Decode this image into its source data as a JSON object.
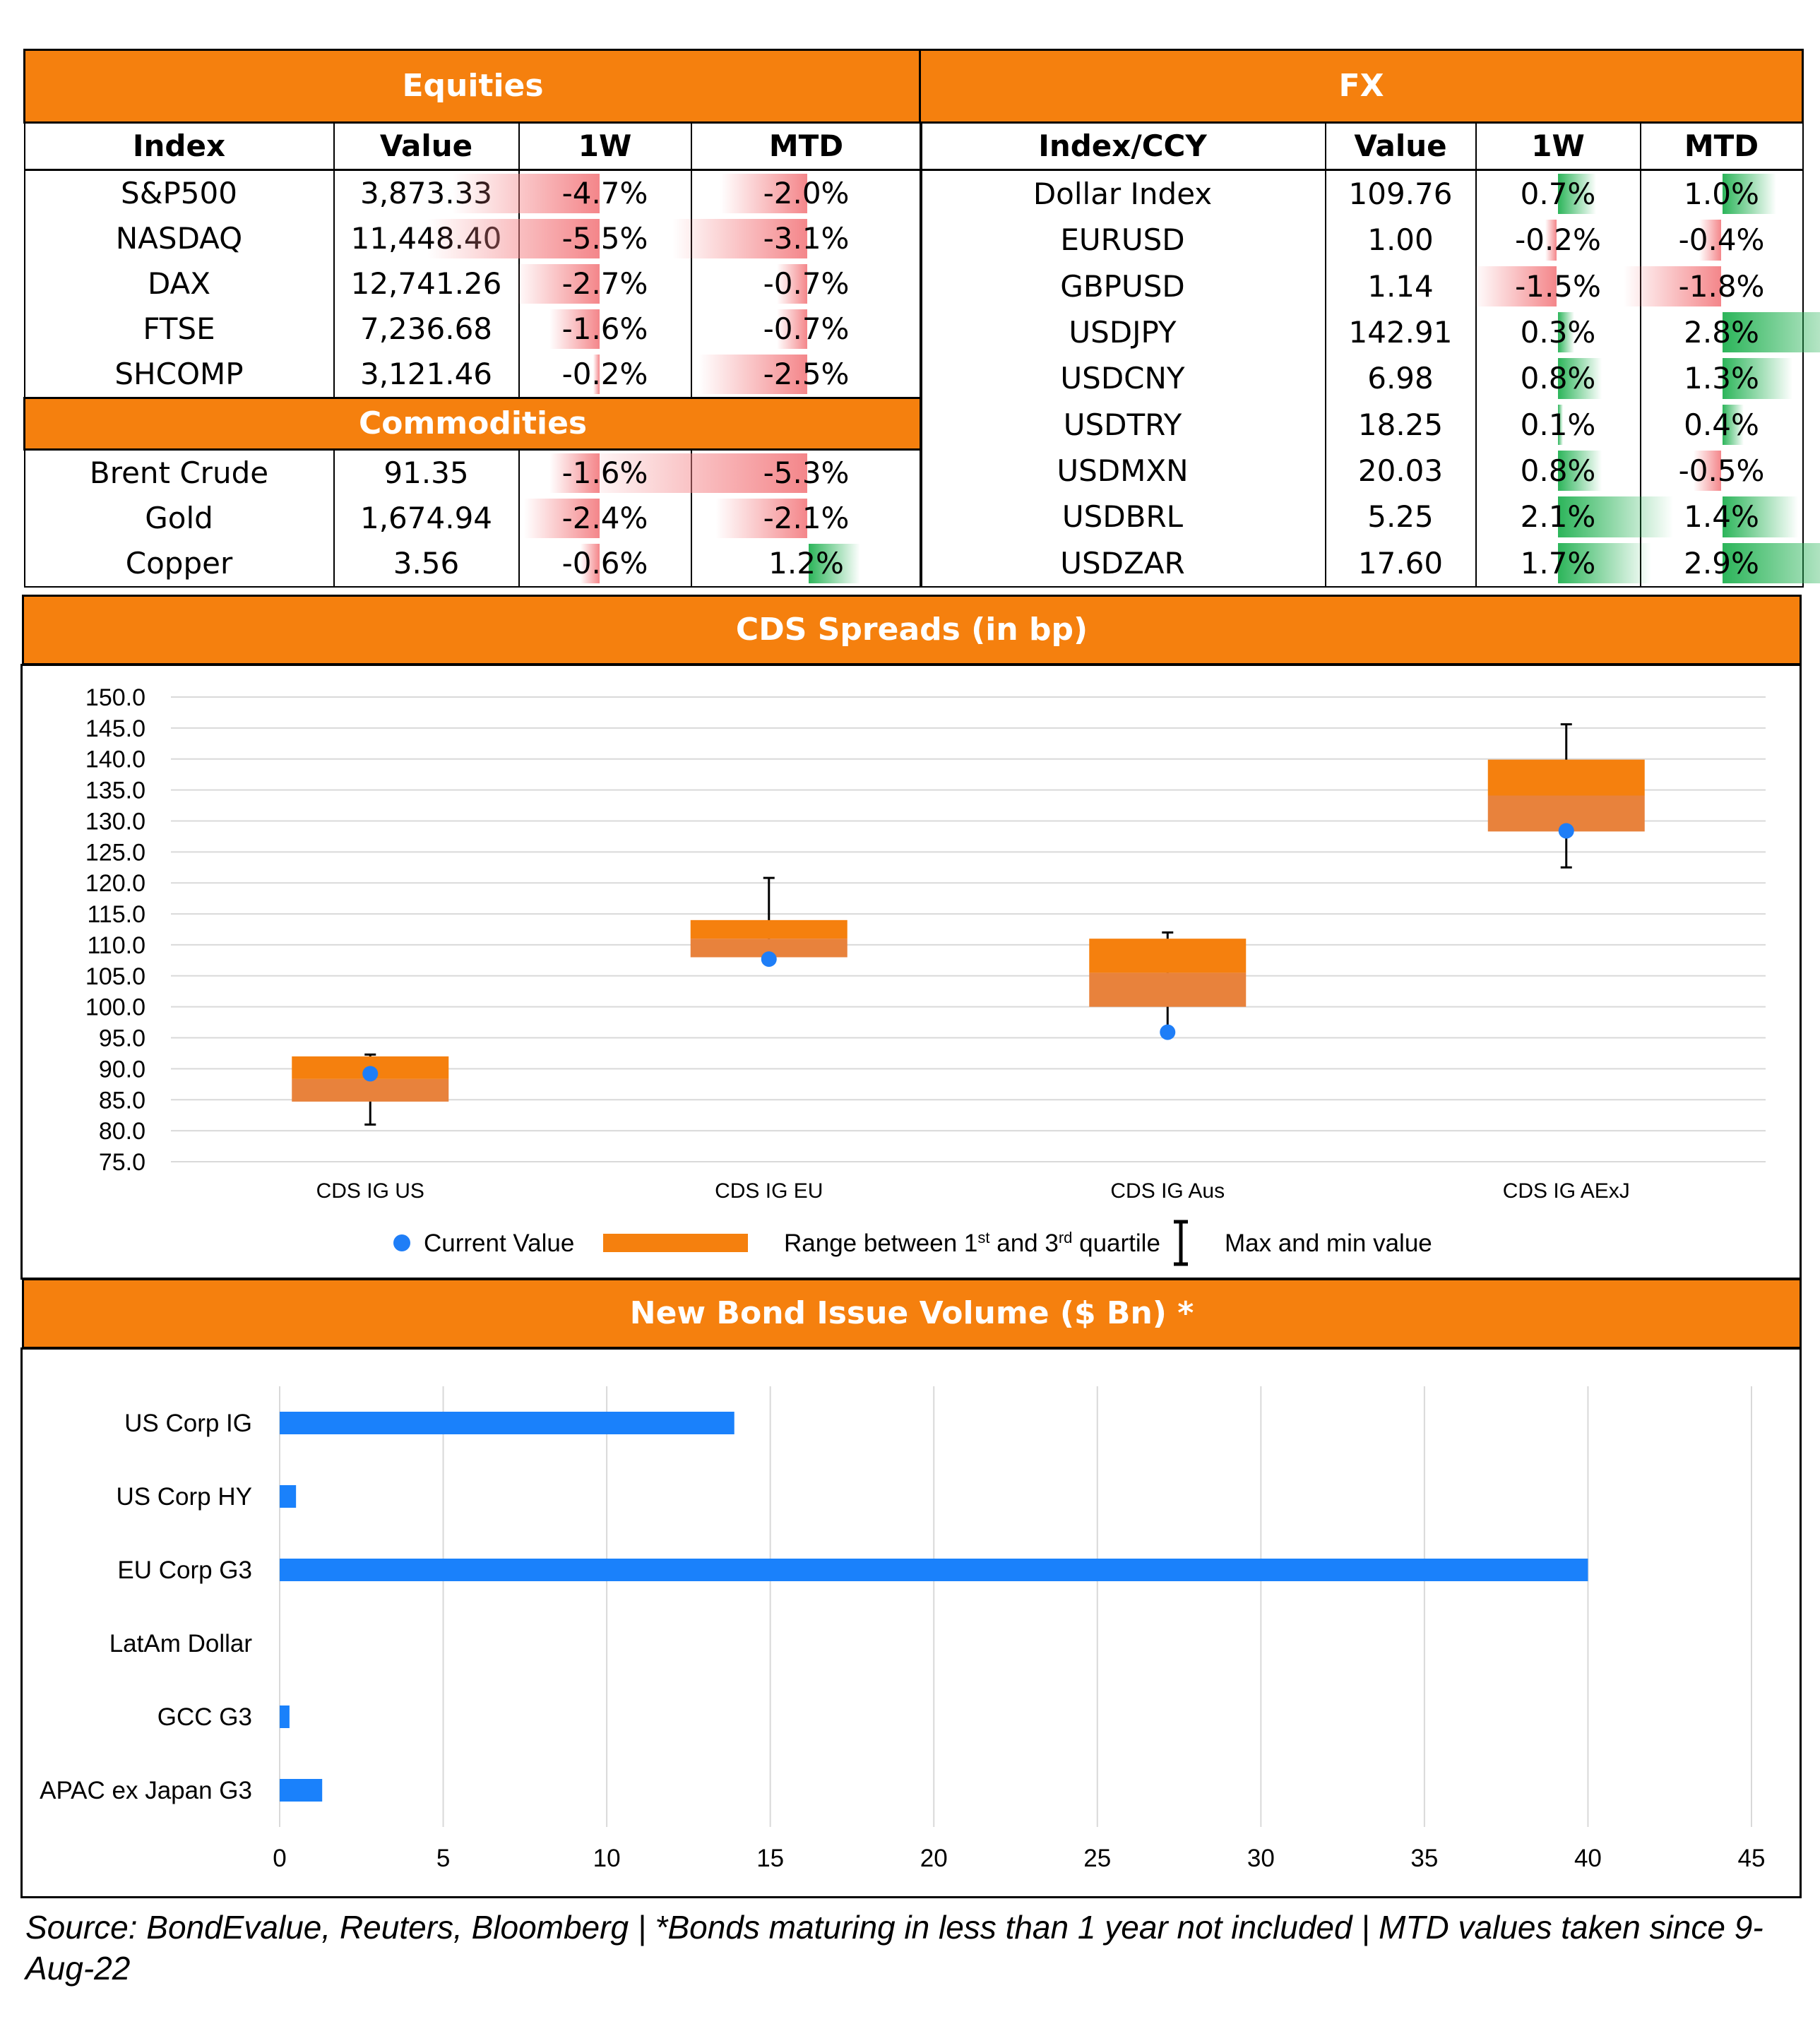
{
  "equities": {
    "title": "Equities",
    "headers": [
      "Index",
      "Value",
      "1W",
      "MTD"
    ],
    "rows": [
      {
        "name": "S&P500",
        "value": "3,873.33",
        "w1": "-4.7%",
        "w1_num": -4.7,
        "mtd": "-2.0%",
        "mtd_num": -2.0
      },
      {
        "name": "NASDAQ",
        "value": "11,448.40",
        "w1": "-5.5%",
        "w1_num": -5.5,
        "mtd": "-3.1%",
        "mtd_num": -3.1
      },
      {
        "name": "DAX",
        "value": "12,741.26",
        "w1": "-2.7%",
        "w1_num": -2.7,
        "mtd": "-0.7%",
        "mtd_num": -0.7
      },
      {
        "name": "FTSE",
        "value": "7,236.68",
        "w1": "-1.6%",
        "w1_num": -1.6,
        "mtd": "-0.7%",
        "mtd_num": -0.7
      },
      {
        "name": "SHCOMP",
        "value": "3,121.46",
        "w1": "-0.2%",
        "w1_num": -0.2,
        "mtd": "-2.5%",
        "mtd_num": -2.5
      }
    ]
  },
  "commodities": {
    "title": "Commodities",
    "rows": [
      {
        "name": "Brent Crude",
        "value": "91.35",
        "w1": "-1.6%",
        "w1_num": -1.6,
        "mtd": "-5.3%",
        "mtd_num": -5.3
      },
      {
        "name": "Gold",
        "value": "1,674.94",
        "w1": "-2.4%",
        "w1_num": -2.4,
        "mtd": "-2.1%",
        "mtd_num": -2.1
      },
      {
        "name": "Copper",
        "value": "3.56",
        "w1": "-0.6%",
        "w1_num": -0.6,
        "mtd": "1.2%",
        "mtd_num": 1.2
      }
    ]
  },
  "fx": {
    "title": "FX",
    "headers": [
      "Index/CCY",
      "Value",
      "1W",
      "MTD"
    ],
    "rows": [
      {
        "name": "Dollar Index",
        "value": "109.76",
        "w1": "0.7%",
        "w1_num": 0.7,
        "mtd": "1.0%",
        "mtd_num": 1.0
      },
      {
        "name": "EURUSD",
        "value": "1.00",
        "w1": "-0.2%",
        "w1_num": -0.2,
        "mtd": "-0.4%",
        "mtd_num": -0.4
      },
      {
        "name": "GBPUSD",
        "value": "1.14",
        "w1": "-1.5%",
        "w1_num": -1.5,
        "mtd": "-1.8%",
        "mtd_num": -1.8
      },
      {
        "name": "USDJPY",
        "value": "142.91",
        "w1": "0.3%",
        "w1_num": 0.3,
        "mtd": "2.8%",
        "mtd_num": 2.8
      },
      {
        "name": "USDCNY",
        "value": "6.98",
        "w1": "0.8%",
        "w1_num": 0.8,
        "mtd": "1.3%",
        "mtd_num": 1.3
      },
      {
        "name": "USDTRY",
        "value": "18.25",
        "w1": "0.1%",
        "w1_num": 0.1,
        "mtd": "0.4%",
        "mtd_num": 0.4
      },
      {
        "name": "USDMXN",
        "value": "20.03",
        "w1": "0.8%",
        "w1_num": 0.8,
        "mtd": "-0.5%",
        "mtd_num": -0.5
      },
      {
        "name": "USDBRL",
        "value": "5.25",
        "w1": "2.1%",
        "w1_num": 2.1,
        "mtd": "1.4%",
        "mtd_num": 1.4
      },
      {
        "name": "USDZAR",
        "value": "17.60",
        "w1": "1.7%",
        "w1_num": 1.7,
        "mtd": "2.9%",
        "mtd_num": 2.9
      }
    ]
  },
  "colors": {
    "accent": "#f5800e",
    "box": "#ed7d31",
    "dot": "#1f7ef7",
    "bar": "#1a81fb",
    "neg": "#f4868a",
    "pos": "#2cb55a"
  },
  "cds": {
    "title": "CDS Spreads (in bp)",
    "legend": {
      "current": "Current Value",
      "range_prefix": "Range between 1",
      "range_sup1": "st",
      "range_mid": " and 3",
      "range_sup2": "rd",
      "range_suffix": " quartile",
      "maxmin": "Max and min value"
    }
  },
  "bonds": {
    "title": "New Bond Issue Volume ($ Bn) *"
  },
  "source": "Source: BondEvalue, Reuters, Bloomberg | *Bonds maturing in less than 1 year not included | MTD values taken since 9-Aug-22",
  "chart_data": [
    {
      "type": "box",
      "title": "CDS Spreads (in bp)",
      "categories": [
        "CDS IG US",
        "CDS IG EU",
        "CDS IG Aus",
        "CDS IG AExJ"
      ],
      "series": [
        {
          "name": "Current Value",
          "values": [
            89.2,
            107.7,
            95.9,
            128.4
          ]
        },
        {
          "name": "Range between 1st and 3rd quartile",
          "q1": [
            84.7,
            108.0,
            100.0,
            128.3
          ],
          "q3": [
            92.0,
            114.0,
            111.0,
            139.9
          ]
        },
        {
          "name": "Max and min value",
          "min": [
            81.0,
            108.0,
            95.5,
            122.5
          ],
          "max": [
            92.3,
            120.8,
            112.0,
            145.6
          ]
        }
      ],
      "ylim": [
        75,
        150
      ],
      "yticks": [
        "75.0",
        "80.0",
        "85.0",
        "90.0",
        "95.0",
        "100.0",
        "105.0",
        "110.0",
        "115.0",
        "120.0",
        "125.0",
        "130.0",
        "135.0",
        "140.0",
        "145.0",
        "150.0"
      ],
      "grid": true,
      "legend": "bottom"
    },
    {
      "type": "bar",
      "orientation": "horizontal",
      "title": "New Bond Issue Volume ($ Bn) *",
      "categories": [
        "US Corp IG",
        "US Corp HY",
        "EU Corp G3",
        "LatAm Dollar",
        "GCC G3",
        "APAC ex Japan G3"
      ],
      "values": [
        13.9,
        0.5,
        40.0,
        0,
        0.3,
        1.3
      ],
      "xlim": [
        0,
        45
      ],
      "xticks": [
        "0",
        "5",
        "10",
        "15",
        "20",
        "25",
        "30",
        "35",
        "40",
        "45"
      ],
      "grid": true
    }
  ]
}
